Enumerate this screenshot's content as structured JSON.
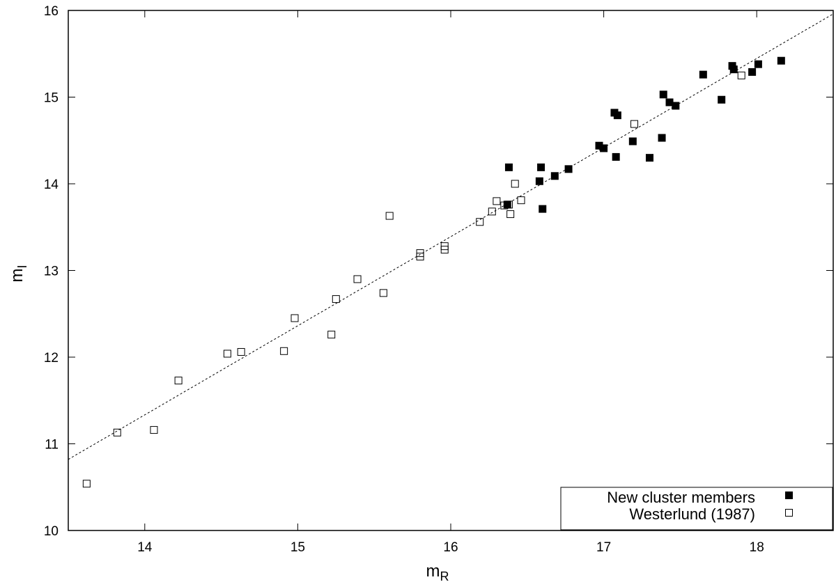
{
  "chart_data": {
    "type": "scatter",
    "xlabel": "m",
    "xlabel_sub": "R",
    "ylabel": "m",
    "ylabel_sub": "I",
    "xlim": [
      13.5,
      18.5
    ],
    "ylim": [
      10,
      16
    ],
    "xticks": [
      14,
      15,
      16,
      17,
      18
    ],
    "yticks": [
      10,
      11,
      12,
      13,
      14,
      15,
      16
    ],
    "grid": false,
    "legend_position": "bottom-right",
    "fit_line": {
      "x": [
        13.5,
        18.5
      ],
      "y": [
        10.82,
        15.96
      ]
    },
    "series": [
      {
        "name": "New cluster members",
        "marker": "filled-square",
        "color": "#000000",
        "points": [
          [
            16.37,
            13.76
          ],
          [
            16.38,
            14.19
          ],
          [
            16.58,
            14.03
          ],
          [
            16.59,
            14.19
          ],
          [
            16.6,
            13.71
          ],
          [
            16.68,
            14.09
          ],
          [
            16.77,
            14.17
          ],
          [
            16.97,
            14.44
          ],
          [
            17.0,
            14.41
          ],
          [
            17.07,
            14.82
          ],
          [
            17.08,
            14.31
          ],
          [
            17.09,
            14.79
          ],
          [
            17.19,
            14.49
          ],
          [
            17.3,
            14.3
          ],
          [
            17.38,
            14.53
          ],
          [
            17.39,
            15.03
          ],
          [
            17.43,
            14.94
          ],
          [
            17.47,
            14.9
          ],
          [
            17.65,
            15.26
          ],
          [
            17.77,
            14.97
          ],
          [
            17.84,
            15.36
          ],
          [
            17.85,
            15.32
          ],
          [
            17.97,
            15.29
          ],
          [
            18.01,
            15.38
          ],
          [
            18.16,
            15.42
          ]
        ]
      },
      {
        "name": "Westerlund (1987)",
        "marker": "open-square",
        "color": "#000000",
        "points": [
          [
            13.62,
            10.54
          ],
          [
            13.82,
            11.13
          ],
          [
            14.06,
            11.16
          ],
          [
            14.22,
            11.73
          ],
          [
            14.54,
            12.04
          ],
          [
            14.63,
            12.06
          ],
          [
            14.91,
            12.07
          ],
          [
            14.98,
            12.45
          ],
          [
            15.22,
            12.26
          ],
          [
            15.25,
            12.67
          ],
          [
            15.39,
            12.9
          ],
          [
            15.56,
            12.74
          ],
          [
            15.6,
            13.63
          ],
          [
            15.8,
            13.2
          ],
          [
            15.8,
            13.16
          ],
          [
            15.96,
            13.28
          ],
          [
            15.96,
            13.24
          ],
          [
            16.19,
            13.56
          ],
          [
            16.27,
            13.68
          ],
          [
            16.3,
            13.8
          ],
          [
            16.35,
            13.75
          ],
          [
            16.38,
            13.76
          ],
          [
            16.39,
            13.65
          ],
          [
            16.42,
            14.0
          ],
          [
            16.46,
            13.81
          ],
          [
            17.2,
            14.69
          ],
          [
            17.9,
            15.25
          ]
        ]
      }
    ]
  }
}
